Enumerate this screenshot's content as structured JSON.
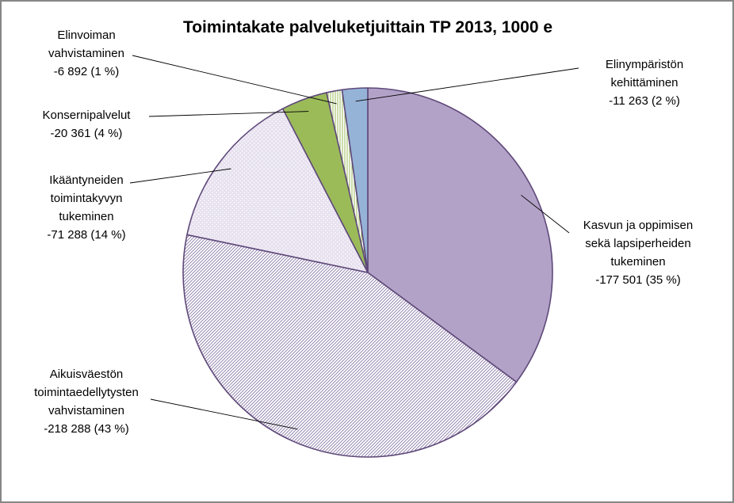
{
  "chart_data": {
    "type": "pie",
    "title": "Toimintakate palveluketjuittain TP 2013, 1000 e",
    "slices": [
      {
        "lines": [
          "Kasvun ja oppimisen",
          "sekä lapsiperheiden",
          "tukeminen",
          "-177 501 (35 %)"
        ],
        "value": -177501,
        "percent": 35,
        "color": "#b3a2c7",
        "pattern": "solid"
      },
      {
        "lines": [
          "Aikuisväestön",
          "toimintaedellytysten",
          "vahvistaminen",
          "-218 288 (43 %)"
        ],
        "value": -218288,
        "percent": 43,
        "color": "#8a7aa8",
        "pattern": "diagonal-stripes"
      },
      {
        "lines": [
          "Ikääntyneiden",
          "toimintakyvyn",
          "tukeminen",
          "-71 288  (14 %)"
        ],
        "value": -71288,
        "percent": 14,
        "color": "#cbbfdc",
        "pattern": "dots"
      },
      {
        "lines": [
          "Konsernipalvelut",
          "-20 361 (4 %)"
        ],
        "value": -20361,
        "percent": 4,
        "color": "#9bbb59",
        "pattern": "solid"
      },
      {
        "lines": [
          "Elinvoiman",
          "vahvistaminen",
          "-6 892  (1 %)"
        ],
        "value": -6892,
        "percent": 1,
        "color": "#c3d69b",
        "pattern": "vertical-stripes"
      },
      {
        "lines": [
          "Elinympäristön",
          "kehittäminen",
          "-11 263 (2 %)"
        ],
        "value": -11263,
        "percent": 2,
        "color": "#95b3d7",
        "pattern": "solid"
      }
    ],
    "legend": "none",
    "start_angle_deg": 0,
    "direction": "clockwise"
  }
}
